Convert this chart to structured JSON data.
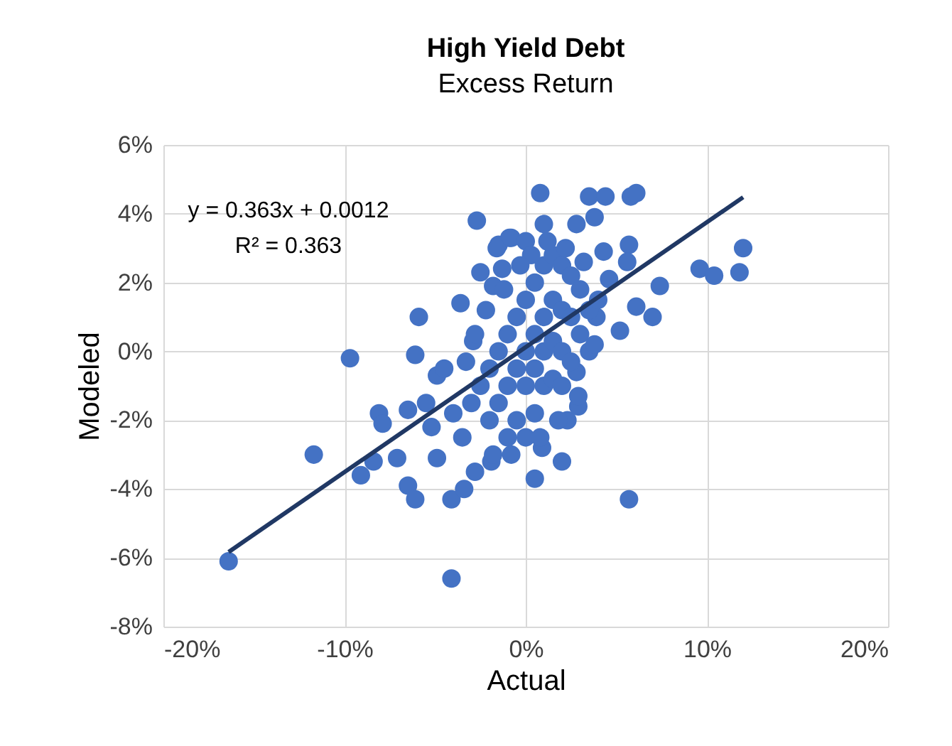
{
  "chart_data": {
    "type": "scatter",
    "title": "High Yield Debt",
    "subtitle": "Excess Return",
    "xlabel": "Actual",
    "ylabel": "Modeled",
    "xlim": [
      -0.2,
      0.2
    ],
    "xticks": [
      {
        "value": -0.2,
        "label": "-20%"
      },
      {
        "value": -0.1,
        "label": "-10%"
      },
      {
        "value": 0,
        "label": "0%"
      },
      {
        "value": 0.1,
        "label": "10%"
      },
      {
        "value": 0.2,
        "label": "20%"
      }
    ],
    "ylim": [
      -0.08,
      0.06
    ],
    "yticks": [
      {
        "value": -0.08,
        "label": "-8%"
      },
      {
        "value": -0.06,
        "label": "-6%"
      },
      {
        "value": -0.04,
        "label": "-4%"
      },
      {
        "value": -0.02,
        "label": "-2%"
      },
      {
        "value": 0,
        "label": "0%"
      },
      {
        "value": 0.02,
        "label": "2%"
      },
      {
        "value": 0.04,
        "label": "4%"
      },
      {
        "value": 0.06,
        "label": "6%"
      }
    ],
    "grid": true,
    "annotations": [
      "y = 0.363x + 0.0012",
      "R² = 0.363"
    ],
    "series": [
      {
        "marker": "circle",
        "color": "#4472c4",
        "x": [
          -0.164,
          -0.117,
          -0.097,
          -0.041,
          -0.091,
          -0.084,
          -0.071,
          -0.081,
          -0.079,
          -0.065,
          -0.061,
          -0.065,
          -0.061,
          -0.059,
          -0.049,
          -0.049,
          -0.041,
          -0.034,
          -0.036,
          -0.027,
          -0.025,
          -0.029,
          -0.028,
          -0.019,
          -0.015,
          -0.009,
          0.008,
          0.035,
          0.044,
          0.058,
          0.061,
          0.12,
          0.096,
          0.104,
          0.118,
          0.074,
          0.057,
          0.056,
          0.07,
          0.052,
          0.039,
          0.057,
          0.005,
          0.02,
          0.009,
          0.023,
          0.029,
          0.029,
          0.035,
          0.028,
          0.038,
          0.028,
          0.01,
          -0.016,
          -0.008,
          0,
          -0.018,
          -0.013,
          0.043,
          0.046,
          0.061,
          -0.03,
          -0.025,
          -0.02,
          -0.02,
          -0.015,
          -0.015,
          -0.01,
          -0.01,
          -0.01,
          -0.005,
          -0.005,
          -0.005,
          0,
          0,
          0,
          0,
          0.005,
          0.005,
          0.005,
          0.005,
          0.01,
          0.01,
          0.01,
          0.01,
          0.015,
          0.015,
          0.015,
          0.015,
          0.02,
          0.02,
          0.02,
          0.02,
          0.025,
          0.025,
          0.025,
          0.03,
          0.03,
          0.035,
          0.038,
          -0.022,
          -0.018,
          -0.035,
          -0.04,
          -0.045,
          0.003,
          -0.003,
          0.012,
          0.022,
          -0.012,
          0.008,
          0.018,
          -0.008,
          -0.028,
          -0.033,
          0.032,
          0.04,
          -0.052,
          -0.055
        ],
        "values": [
          -0.061,
          -0.03,
          -0.002,
          -0.066,
          -0.036,
          -0.032,
          -0.031,
          -0.018,
          -0.021,
          -0.039,
          -0.043,
          -0.017,
          -0.001,
          0.01,
          -0.007,
          -0.031,
          -0.043,
          -0.04,
          0.014,
          0.038,
          0.023,
          0.003,
          -0.035,
          -0.032,
          0.031,
          0.033,
          0.046,
          0.045,
          0.045,
          0.045,
          0.046,
          0.03,
          0.024,
          0.022,
          0.023,
          0.019,
          0.031,
          0.026,
          0.01,
          0.006,
          0.01,
          -0.043,
          -0.037,
          -0.032,
          -0.028,
          -0.02,
          -0.016,
          -0.013,
          0,
          -0.006,
          0.039,
          0.037,
          0.037,
          0.03,
          0.033,
          0.032,
          0.019,
          0.024,
          0.029,
          0.021,
          0.013,
          -0.015,
          -0.01,
          -0.005,
          -0.02,
          0,
          -0.015,
          0.005,
          -0.01,
          -0.025,
          0.01,
          -0.005,
          -0.02,
          0.015,
          0,
          -0.01,
          -0.025,
          0.02,
          0.005,
          -0.005,
          -0.018,
          0.025,
          0.01,
          0,
          -0.01,
          0.028,
          0.015,
          0.003,
          -0.008,
          0.025,
          0.012,
          0,
          -0.01,
          0.022,
          0.01,
          -0.003,
          0.018,
          0.005,
          0.012,
          0.002,
          0.012,
          -0.03,
          -0.025,
          -0.018,
          -0.005,
          0.028,
          0.025,
          0.032,
          0.03,
          0.018,
          -0.025,
          -0.02,
          -0.03,
          0.005,
          -0.003,
          0.026,
          0.015,
          -0.022,
          -0.015
        ]
      },
      {
        "type": "line",
        "marker": "none",
        "color": "#203864",
        "x": [
          -0.164,
          0.12
        ],
        "values": [
          -0.0583,
          0.0448
        ]
      }
    ]
  }
}
